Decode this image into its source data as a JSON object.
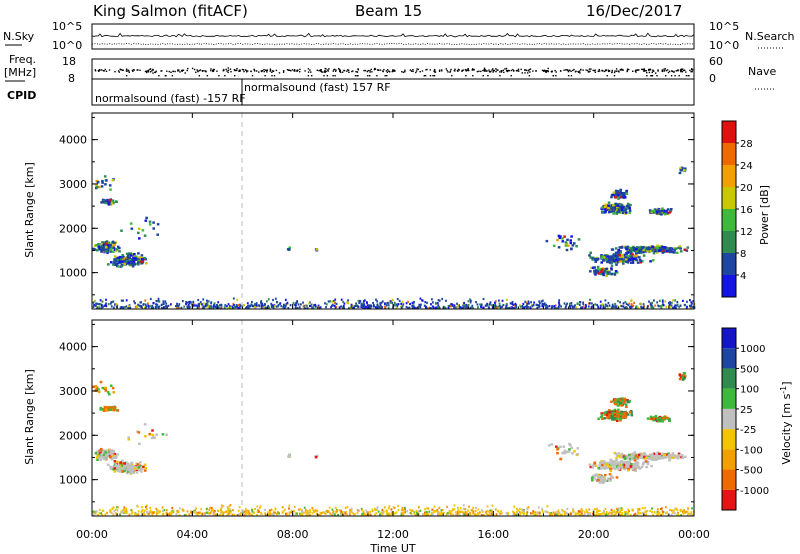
{
  "header": {
    "title": "King Salmon (fitACF)",
    "beam": "Beam 15",
    "date": "16/Dec/2017"
  },
  "side_labels": {
    "nsky": "N.Sky",
    "freq": "Freq.",
    "freq_unit": "[MHz]",
    "cpid": "CPID",
    "nsearch": "N.Search",
    "nave": "Nave"
  },
  "cpid_texts": {
    "mode_a": "normalsound (fast) -157 RF",
    "mode_b": "normalsound (fast) 157 RF"
  },
  "colors": {
    "power": [
      "#1414e6",
      "#1e46a0",
      "#2e8c4e",
      "#3fb93a",
      "#c8c800",
      "#f0a000",
      "#ee6a00",
      "#e01010"
    ],
    "velocity": [
      "#e61414",
      "#ee6a00",
      "#f0a000",
      "#f4c400",
      "#c0c0c0",
      "#3fb93a",
      "#2e8c4e",
      "#1e46a0",
      "#1414c8"
    ]
  },
  "chart_data": [
    {
      "type": "line",
      "name": "noise-panel",
      "series": [
        {
          "name": "N.Sky"
        },
        {
          "name": "N.Search"
        }
      ],
      "left_ticks": [
        "10^5",
        "10^0"
      ],
      "right_ticks": [
        "10^5",
        "10^0"
      ],
      "left_label": "N.Sky",
      "right_label": "N.Search"
    },
    {
      "type": "scatter",
      "name": "frequency-panel",
      "left_ticks": [
        "18",
        "8"
      ],
      "right_ticks": [
        "60",
        "0"
      ],
      "ylim_left": [
        8,
        18
      ],
      "ylim_right": [
        0,
        60
      ],
      "left_label": "Freq. [MHz]",
      "right_label": "Nave"
    },
    {
      "type": "heatmap",
      "name": "power-panel",
      "ylabel": "Slant Range [km]",
      "ylim": [
        180,
        4600
      ],
      "xlim_hours": [
        0,
        24
      ],
      "y_ticks": [
        1000,
        2000,
        3000,
        4000
      ],
      "colorbar": {
        "label": "Power [dB]",
        "range": [
          0,
          32
        ],
        "ticks": [
          4,
          8,
          12,
          16,
          20,
          24,
          28
        ]
      }
    },
    {
      "type": "heatmap",
      "name": "velocity-panel",
      "ylabel": "Slant Range [km]",
      "ylim": [
        180,
        4600
      ],
      "xlim_hours": [
        0,
        24
      ],
      "y_ticks": [
        1000,
        2000,
        3000,
        4000
      ],
      "colorbar": {
        "label": "Velocity [m s-1]",
        "ticks": [
          "-1000",
          "-500",
          "-100",
          "-25",
          "25",
          "100",
          "500",
          "1000"
        ]
      }
    }
  ],
  "x_axis": {
    "label": "Time UT",
    "ticks": [
      "00:00",
      "04:00",
      "08:00",
      "12:00",
      "16:00",
      "20:00",
      "00:00"
    ]
  },
  "power_labels": {
    "cbar_label_main": "Power [",
    "cbar_label_unit": "dB",
    "cbar_label_end": "]"
  },
  "velocity_labels": {
    "cbar_label_main": "Velocity [m s",
    "cbar_label_exp": "-1",
    "cbar_label_end": "]"
  }
}
